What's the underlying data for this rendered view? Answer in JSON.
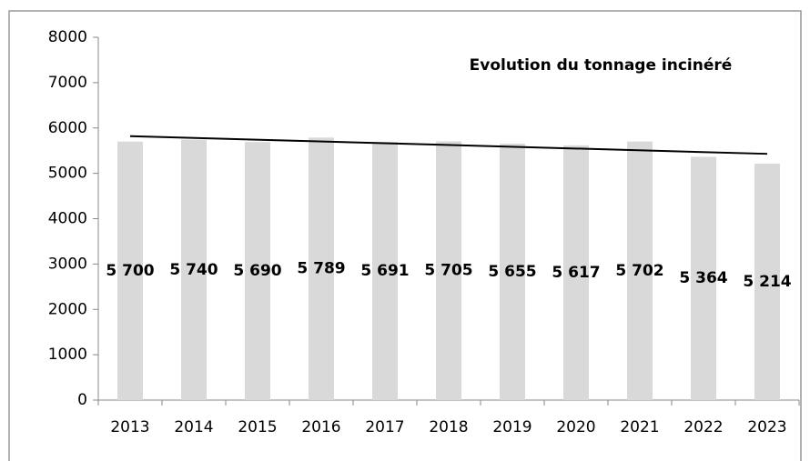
{
  "chart_data": {
    "type": "bar",
    "title": "Evolution du tonnage incinéré",
    "categories": [
      "2013",
      "2014",
      "2015",
      "2016",
      "2017",
      "2018",
      "2019",
      "2020",
      "2021",
      "2022",
      "2023"
    ],
    "values": [
      5700,
      5740,
      5690,
      5789,
      5691,
      5705,
      5655,
      5617,
      5702,
      5364,
      5214
    ],
    "value_labels": [
      "5 700",
      "5 740",
      "5 690",
      "5 789",
      "5 691",
      "5 705",
      "5 655",
      "5 617",
      "5 702",
      "5 364",
      "5 214"
    ],
    "color": "#d9d9d9",
    "trendline": true,
    "trendline_color": "#000000",
    "ylim": [
      0,
      8000
    ],
    "yticks": [
      0,
      1000,
      2000,
      3000,
      4000,
      5000,
      6000,
      7000,
      8000
    ],
    "grid": false
  }
}
